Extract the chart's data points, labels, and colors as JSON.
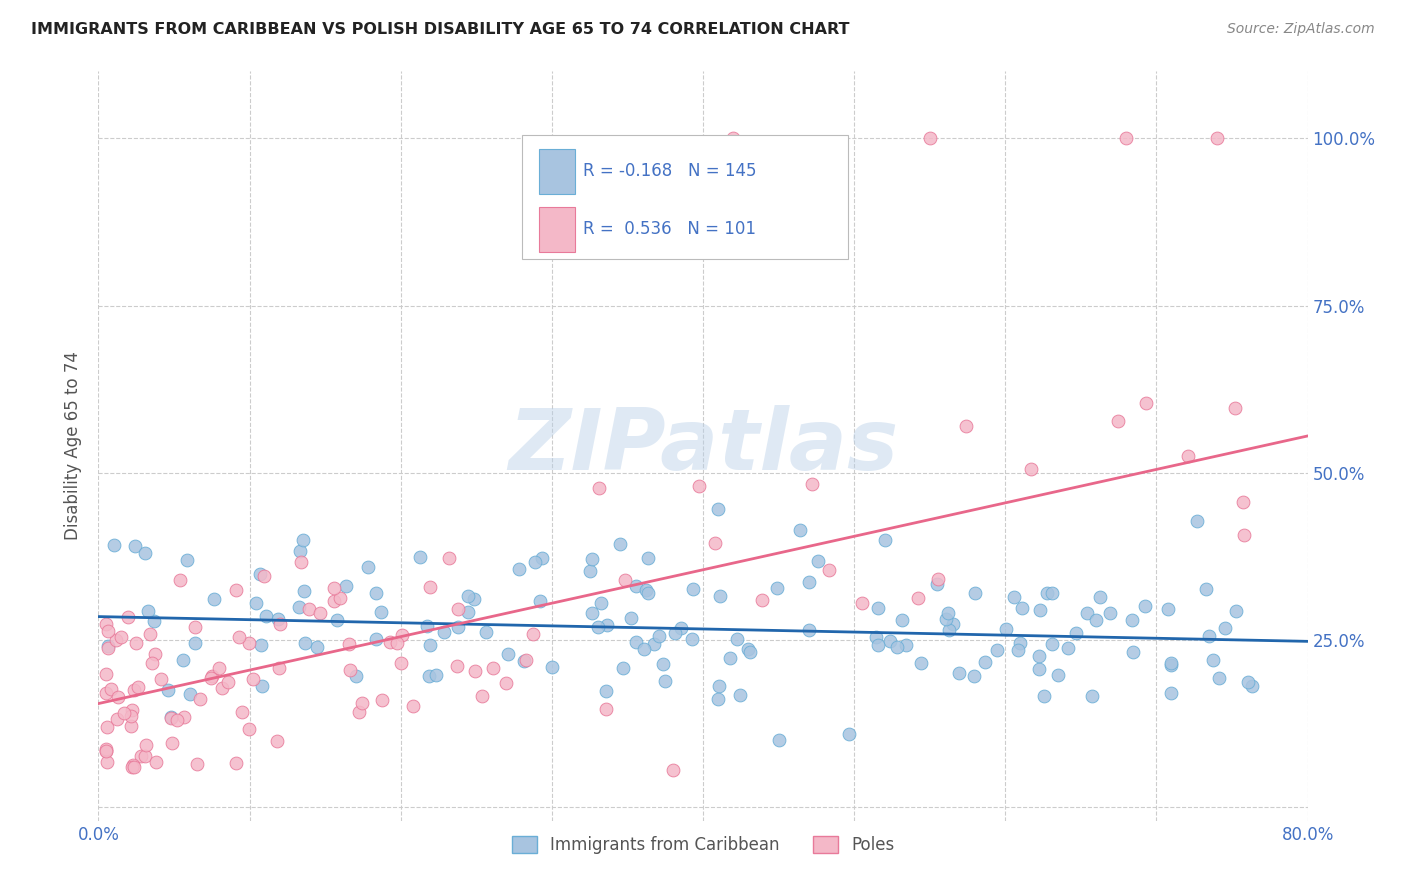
{
  "title": "IMMIGRANTS FROM CARIBBEAN VS POLISH DISABILITY AGE 65 TO 74 CORRELATION CHART",
  "source": "Source: ZipAtlas.com",
  "ylabel": "Disability Age 65 to 74",
  "xlim": [
    0.0,
    0.8
  ],
  "ylim": [
    -0.02,
    1.1
  ],
  "xtick_positions": [
    0.0,
    0.1,
    0.2,
    0.3,
    0.4,
    0.5,
    0.6,
    0.7,
    0.8
  ],
  "xticklabels": [
    "0.0%",
    "",
    "",
    "",
    "",
    "",
    "",
    "",
    "80.0%"
  ],
  "ytick_positions": [
    0.25,
    0.5,
    0.75,
    1.0
  ],
  "yticklabels": [
    "25.0%",
    "50.0%",
    "75.0%",
    "100.0%"
  ],
  "caribbean_color": "#a8c4e0",
  "caribbean_edge": "#6aaed6",
  "poles_color": "#f4b8c8",
  "poles_edge": "#e87a9a",
  "line_caribbean_color": "#2166ac",
  "line_poles_color": "#e8678a",
  "R_caribbean": -0.168,
  "N_caribbean": 145,
  "R_poles": 0.536,
  "N_poles": 101,
  "legend_text_color": "#4472c4",
  "watermark": "ZIPatlas",
  "grid_color": "#cccccc",
  "title_color": "#222222",
  "source_color": "#888888",
  "ylabel_color": "#555555",
  "tick_label_color": "#4472c4",
  "bottom_legend_label_color": "#555555",
  "line_caribbean": {
    "x0": 0.0,
    "y0": 0.285,
    "x1": 0.8,
    "y1": 0.248
  },
  "line_poles": {
    "x0": 0.0,
    "y0": 0.155,
    "x1": 0.8,
    "y1": 0.555
  }
}
